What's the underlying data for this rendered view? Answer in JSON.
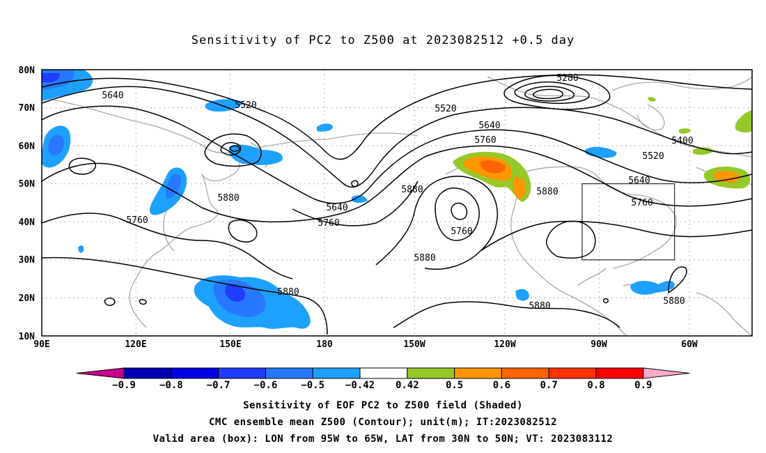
{
  "title": "Sensitivity of PC2 to Z500 at 2023082512 +0.5 day",
  "axes": {
    "lat_ticks": [
      "80N",
      "70N",
      "60N",
      "50N",
      "40N",
      "30N",
      "20N",
      "10N"
    ],
    "lon_ticks": [
      "90E",
      "120E",
      "150E",
      "180",
      "150W",
      "120W",
      "90W",
      "60W"
    ]
  },
  "contour_labels": [
    "5280",
    "5400",
    "5520",
    "5520",
    "5520",
    "5640",
    "5640",
    "5640",
    "5640",
    "5760",
    "5760",
    "5760",
    "5760",
    "5760",
    "5880",
    "5880",
    "5880",
    "5880",
    "5880",
    "5880",
    "5880"
  ],
  "colorbar": {
    "ticks": [
      "−0.9",
      "−0.8",
      "−0.7",
      "−0.6",
      "−0.5",
      "−0.42",
      "0.42",
      "0.5",
      "0.6",
      "0.7",
      "0.8",
      "0.9"
    ],
    "colors": [
      "#0000b4",
      "#0000e6",
      "#1f3cff",
      "#2878ff",
      "#1ea0ff",
      "#ffffff",
      "#96c828",
      "#ff9600",
      "#ff6400",
      "#ff3200",
      "#ff0000"
    ],
    "low_end_color": "#c8008c",
    "high_end_color": "#ffaaca"
  },
  "captions": [
    "Sensitivity of EOF PC2 to Z500 field (Shaded)",
    "CMC ensemble mean Z500 (Contour); unit(m); IT:2023082512",
    "Valid area (box): LON from 95W to 65W, LAT from 30N to 50N; VT: 2023083112"
  ],
  "valid_area": {
    "lon_min": "95W",
    "lon_max": "65W",
    "lat_min": "30N",
    "lat_max": "50N"
  }
}
